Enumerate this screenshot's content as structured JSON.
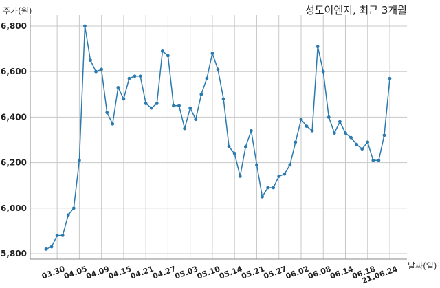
{
  "chart_data": {
    "type": "line",
    "title": "성도이엔지, 최근 3개월",
    "ylabel": "주가(원)",
    "xlabel": "날짜(일)",
    "ylim": [
      5800,
      6850
    ],
    "yticks": [
      5800,
      6000,
      6200,
      6400,
      6600,
      6800
    ],
    "ytick_labels": [
      "5,800",
      "6,000",
      "6,200",
      "6,400",
      "6,600",
      "6,800"
    ],
    "xtick_labels": [
      "03.30",
      "04.05",
      "04.09",
      "04.15",
      "04.21",
      "04.27",
      "05.03",
      "05.10",
      "05.14",
      "05.21",
      "05.27",
      "06.02",
      "06.08",
      "06.14",
      "06.18",
      "21.06.24"
    ],
    "xtick_indices": [
      2,
      6,
      10,
      14,
      18,
      22,
      26,
      30,
      34,
      38,
      42,
      46,
      50,
      54,
      58,
      62
    ],
    "grid": true,
    "color": "#2a7ab0",
    "series": [
      {
        "values": [
          5820,
          5830,
          5880,
          5880,
          5970,
          6000,
          6210,
          6800,
          6650,
          6600,
          6610,
          6420,
          6370,
          6530,
          6480,
          6570,
          6580,
          6580,
          6460,
          6440,
          6460,
          6690,
          6670,
          6450,
          6450,
          6350,
          6440,
          6390,
          6500,
          6570,
          6680,
          6610,
          6480,
          6270,
          6240,
          6140,
          6270,
          6340,
          6190,
          6050,
          6090,
          6090,
          6140,
          6150,
          6190,
          6290,
          6390,
          6360,
          6340,
          6710,
          6600,
          6400,
          6330,
          6380,
          6330,
          6310,
          6280,
          6260,
          6290,
          6210,
          6210,
          6320,
          6570
        ]
      }
    ]
  }
}
